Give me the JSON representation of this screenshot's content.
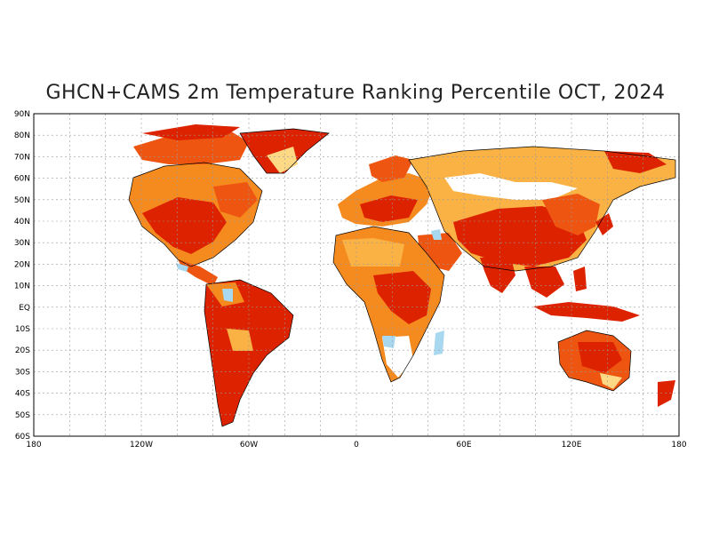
{
  "title": "GHCN+CAMS 2m Temperature Ranking Percentile OCT, 2024",
  "lat_labels": [
    "90N",
    "80N",
    "70N",
    "60N",
    "50N",
    "40N",
    "30N",
    "20N",
    "10N",
    "EQ",
    "10S",
    "20S",
    "30S",
    "40S",
    "50S",
    "60S"
  ],
  "lon_labels": [
    "180",
    "120W",
    "60W",
    "0",
    "60E",
    "120E",
    "180"
  ],
  "colors": {
    "warm_extreme": "#dd2200",
    "warm_strong": "#ee5511",
    "warm_mod": "#f58a1f",
    "warm_light": "#fbb244",
    "warm_faint": "#fdd985",
    "neutral": "#ffffff",
    "cool_light": "#a8d8f0",
    "grid": "#999999"
  }
}
